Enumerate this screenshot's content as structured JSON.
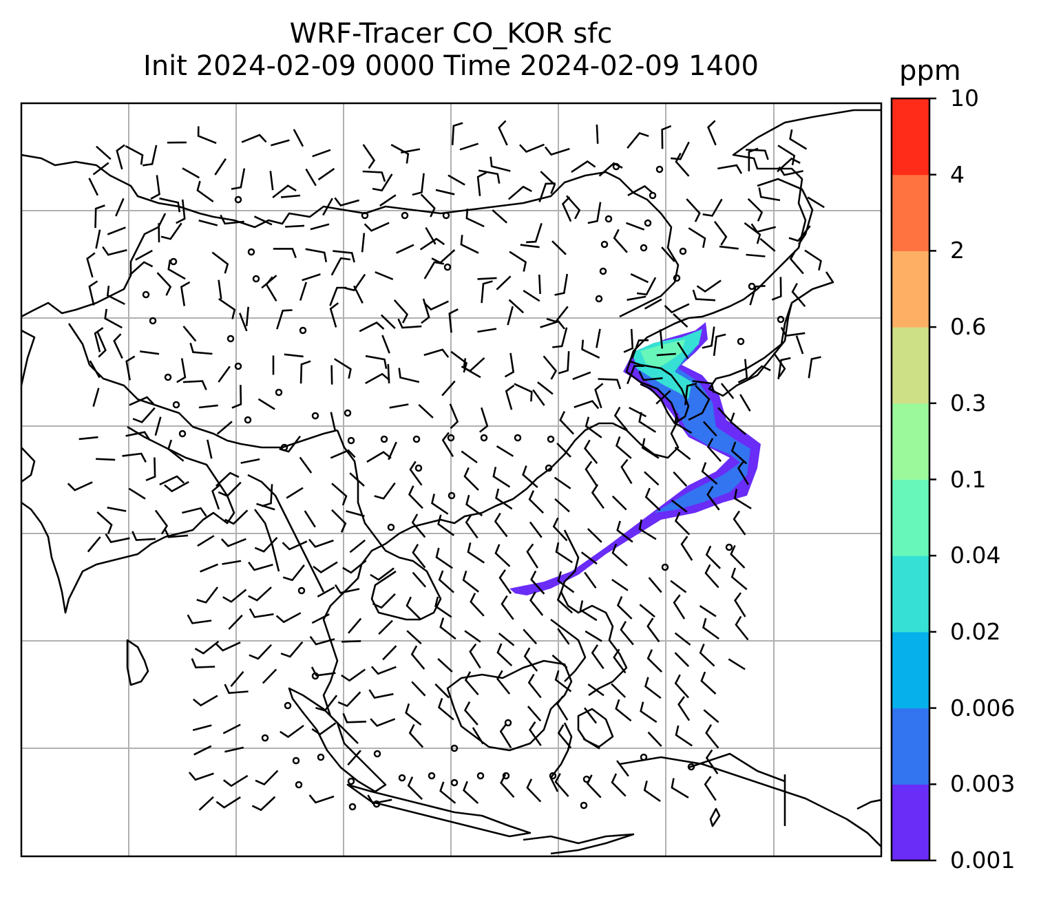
{
  "title": {
    "line1": "WRF-Tracer CO_KOR sfc",
    "line2": "Init 2024-02-09 0000 Time 2024-02-09 1400"
  },
  "colorbar": {
    "unit": "ppm",
    "ticks": [
      "0.001",
      "0.003",
      "0.006",
      "0.02",
      "0.04",
      "0.1",
      "0.3",
      "0.6",
      "2",
      "4",
      "10"
    ],
    "colors": [
      "#6a2cf7",
      "#3374f1",
      "#06b0ea",
      "#36e0d4",
      "#68f7ba",
      "#9bf99c",
      "#cee086",
      "#feaf64",
      "#fe7340",
      "#fe2c18"
    ]
  },
  "map": {
    "gridlines": true,
    "coastline_color": "#000000",
    "grid_color": "#b0b0b0",
    "plume_colors": {
      "outer": "#6a2cf7",
      "mid": "#3374f1",
      "core": "#36e0d4",
      "center": "#68f7ba"
    }
  }
}
